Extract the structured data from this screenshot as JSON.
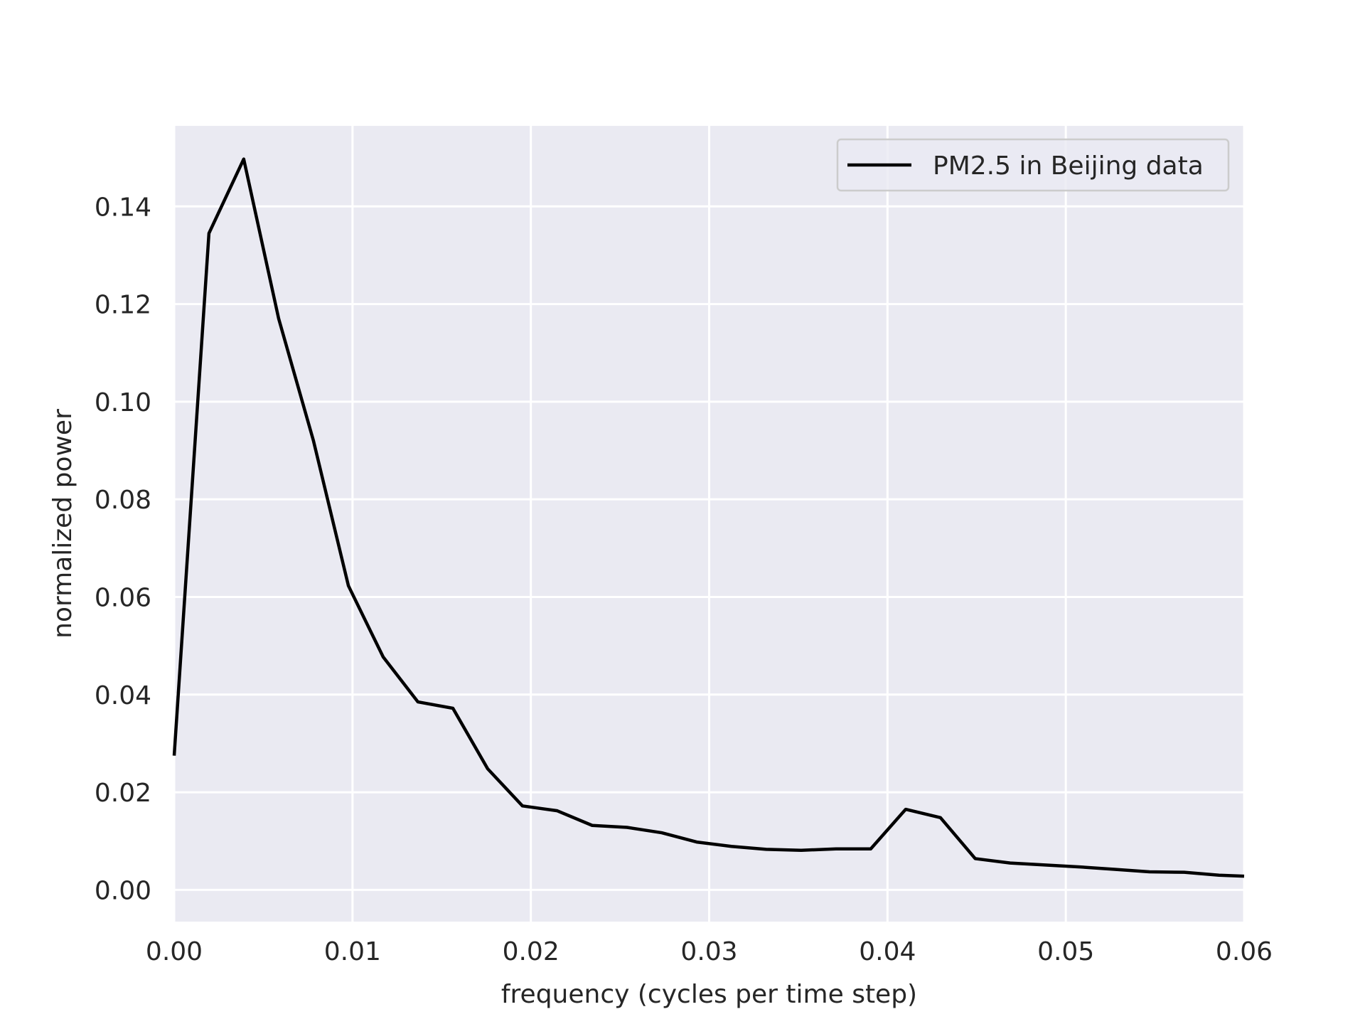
{
  "chart_data": {
    "type": "line",
    "title": "",
    "xlabel": "frequency (cycles per time step)",
    "ylabel": "normalized power",
    "xlim": [
      0.0,
      0.06
    ],
    "ylim": [
      -0.0065,
      0.1565
    ],
    "x_ticks": [
      0.0,
      0.01,
      0.02,
      0.03,
      0.04,
      0.05,
      0.06
    ],
    "x_tick_labels": [
      "0.00",
      "0.01",
      "0.02",
      "0.03",
      "0.04",
      "0.05",
      "0.06"
    ],
    "y_ticks": [
      0.0,
      0.02,
      0.04,
      0.06,
      0.08,
      0.1,
      0.12,
      0.14
    ],
    "y_tick_labels": [
      "0.00",
      "0.02",
      "0.04",
      "0.06",
      "0.08",
      "0.10",
      "0.12",
      "0.14"
    ],
    "grid": true,
    "legend_position": "top-right",
    "colors": {
      "plot_background": "#eaeaf2",
      "grid": "#ffffff",
      "line": "#000000",
      "text": "#262626"
    },
    "series": [
      {
        "name": "PM2.5 in Beijing data",
        "x": [
          0.0,
          0.00195,
          0.0039,
          0.00586,
          0.00781,
          0.00977,
          0.01172,
          0.01367,
          0.01563,
          0.01758,
          0.01953,
          0.02148,
          0.02344,
          0.02539,
          0.02734,
          0.0293,
          0.03125,
          0.0332,
          0.03516,
          0.03711,
          0.03906,
          0.04102,
          0.04297,
          0.04492,
          0.04688,
          0.04883,
          0.05078,
          0.05273,
          0.05469,
          0.05664,
          0.05859,
          0.06
        ],
        "values": [
          0.0275,
          0.1345,
          0.1497,
          0.117,
          0.092,
          0.0623,
          0.0477,
          0.0385,
          0.0372,
          0.0248,
          0.0172,
          0.0162,
          0.0132,
          0.0128,
          0.0117,
          0.0098,
          0.0089,
          0.0083,
          0.0081,
          0.0084,
          0.0084,
          0.0165,
          0.0148,
          0.0064,
          0.0055,
          0.0051,
          0.0047,
          0.0042,
          0.0037,
          0.0036,
          0.003,
          0.0028
        ]
      }
    ]
  }
}
